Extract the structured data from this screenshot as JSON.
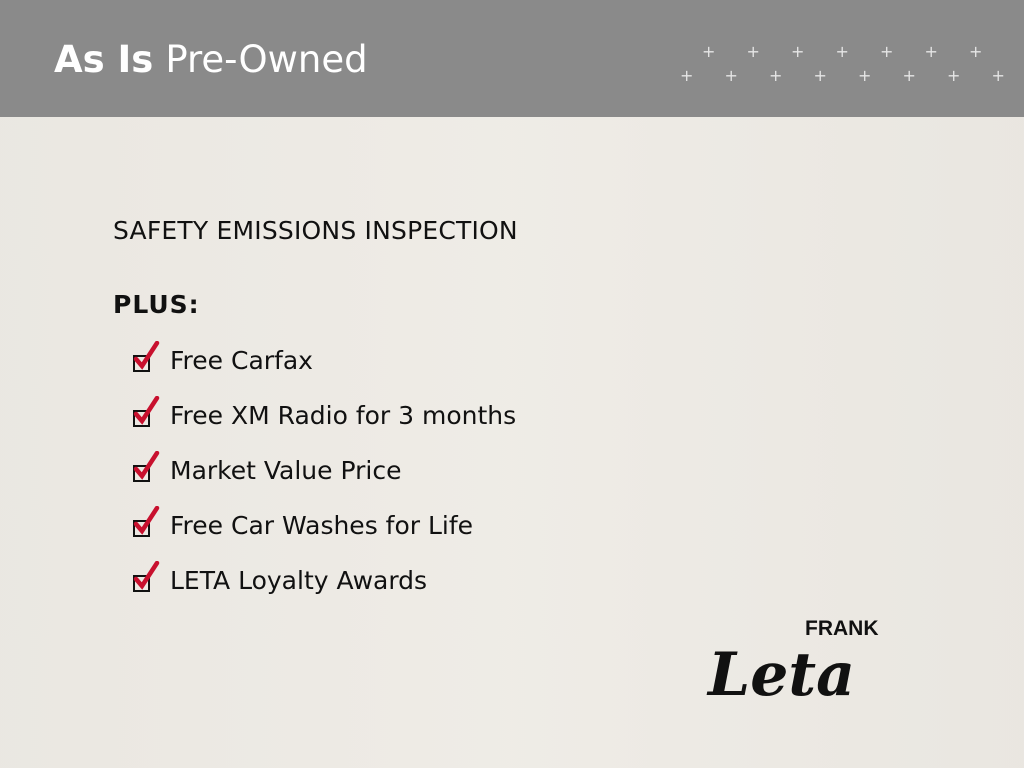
{
  "header": {
    "title_bold": "As Is",
    "title_rest": "Pre-Owned"
  },
  "main": {
    "heading": "SAFETY EMISSIONS INSPECTION",
    "plus_label": "PLUS:",
    "items": [
      {
        "label": "Free Carfax"
      },
      {
        "label": "Free XM Radio for 3 months"
      },
      {
        "label": "Market Value Price"
      },
      {
        "label": "Free Car Washes for Life"
      },
      {
        "label": "LETA Loyalty Awards"
      }
    ]
  },
  "logo": {
    "small": "FRANK",
    "script": "Leta"
  },
  "colors": {
    "header": "#8a8a8a",
    "check": "#c8102e",
    "background": "#eeebe5"
  }
}
